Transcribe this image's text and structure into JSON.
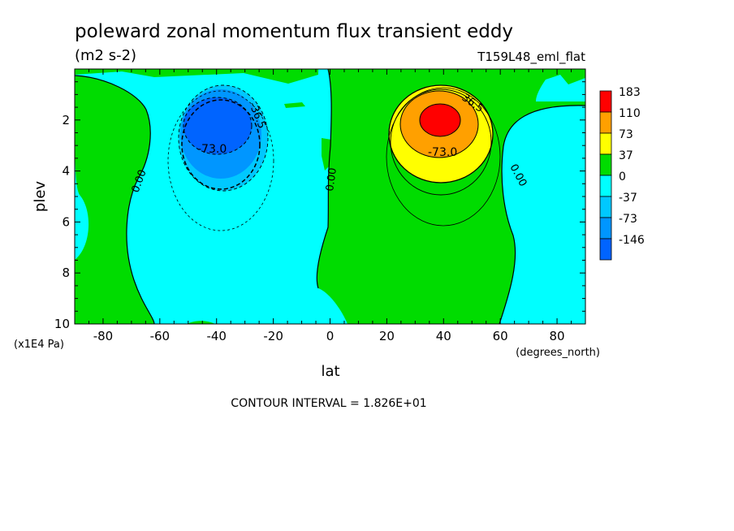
{
  "chart_data": {
    "type": "contour",
    "title": "poleward zonal momentum flux transient eddy",
    "units": "(m2 s-2)",
    "dataset": "T159L48_eml_flat",
    "xlabel": "lat",
    "x_units": "(degrees_north)",
    "ylabel": "plev",
    "y_units": "(x1E4 Pa)",
    "xlim": [
      -90,
      90
    ],
    "ylim": [
      10,
      0
    ],
    "x_ticks": [
      "-80",
      "-60",
      "-40",
      "-20",
      "0",
      "20",
      "40",
      "60",
      "80"
    ],
    "y_ticks": [
      "2",
      "4",
      "6",
      "8",
      "10"
    ],
    "contour_interval": "CONTOUR INTERVAL = 1.826E+01",
    "levels": [
      "183",
      "110",
      "73",
      "37",
      "0",
      "-37",
      "-73",
      "-146"
    ],
    "level_colors": [
      "#ff0000",
      "#ffa000",
      "#ffff00",
      "#00dc00",
      "#00ffff",
      "#00c8ff",
      "#0096ff",
      "#0064ff"
    ],
    "contour_labels": [
      "0.00",
      "0.00",
      "0.00",
      "-36.5",
      "-73.0",
      "36.5",
      "-73.0"
    ],
    "extrema": [
      {
        "name": "southern-minimum",
        "lat": -40,
        "plev": 2.3,
        "value_range": "below -73"
      },
      {
        "name": "northern-maximum",
        "lat": 40,
        "plev": 2.3,
        "value_range": "above 110"
      }
    ]
  }
}
